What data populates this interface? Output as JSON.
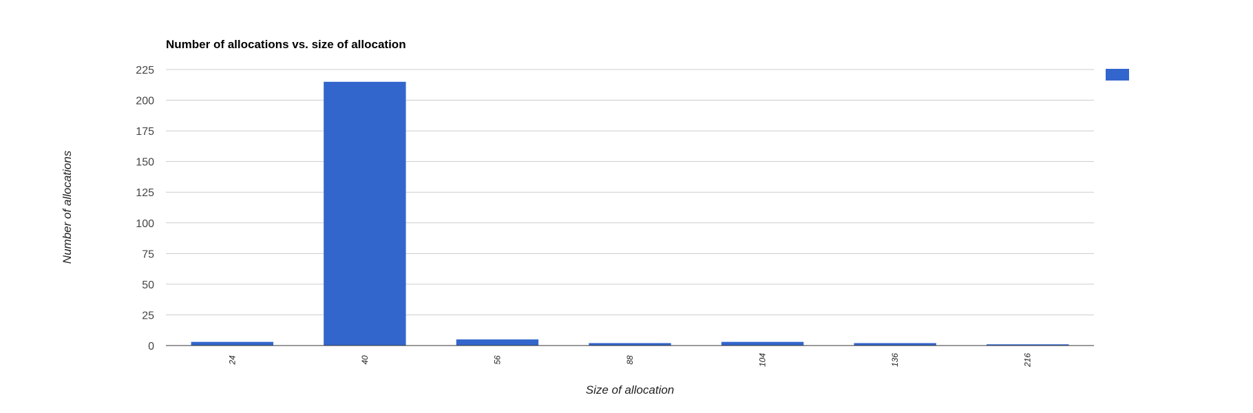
{
  "chart_data": {
    "type": "bar",
    "title": "Number of allocations vs. size of allocation",
    "xlabel": "Size of allocation",
    "ylabel": "Number of allocations",
    "categories": [
      "24",
      "40",
      "56",
      "88",
      "104",
      "136",
      "216"
    ],
    "series": [
      {
        "values": [
          3,
          215,
          5,
          2,
          3,
          2,
          1
        ],
        "color": "#3366cc"
      }
    ],
    "ylim": [
      0,
      225
    ],
    "y_ticks": [
      "0",
      "25",
      "50",
      "75",
      "100",
      "125",
      "150",
      "175",
      "200",
      "225"
    ],
    "grid": true,
    "legend": "right"
  }
}
